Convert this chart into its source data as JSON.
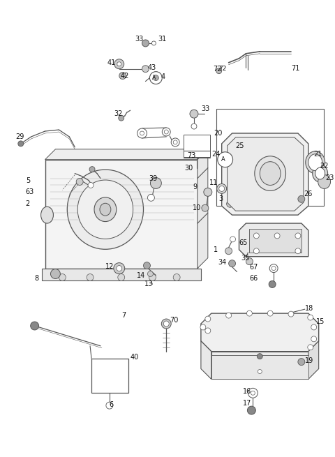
{
  "bg_color": "#ffffff",
  "line_color": "#555555",
  "label_color": "#111111",
  "fig_width": 4.8,
  "fig_height": 6.55,
  "dpi": 100
}
